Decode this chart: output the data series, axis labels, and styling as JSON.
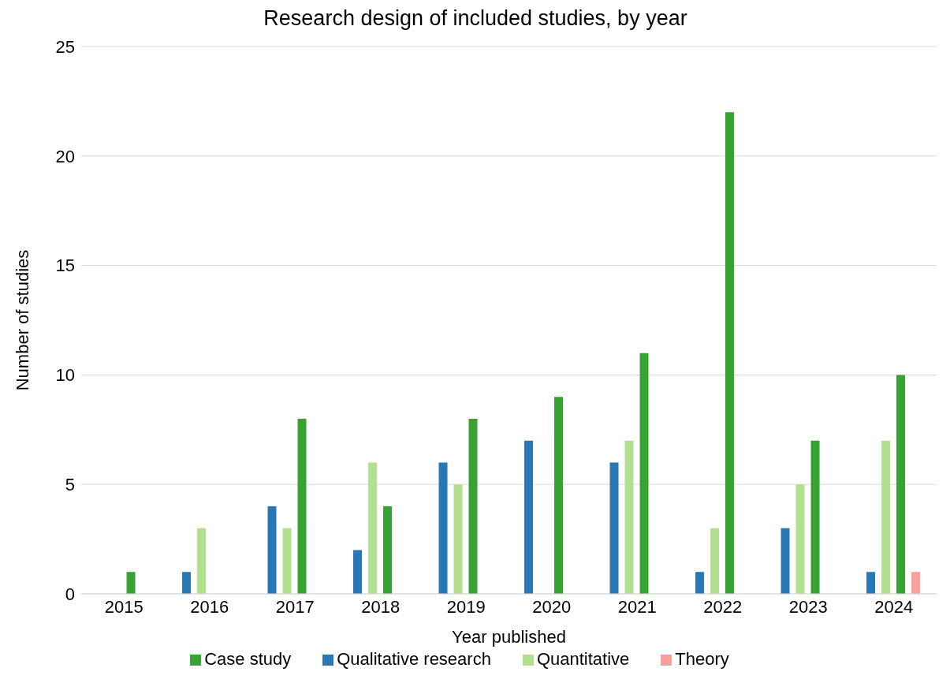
{
  "chart_data": {
    "type": "bar",
    "title": "Research design of included studies, by year",
    "xlabel": "Year published",
    "ylabel": "Number of studies",
    "categories": [
      "2015",
      "2016",
      "2017",
      "2018",
      "2019",
      "2020",
      "2021",
      "2022",
      "2023",
      "2024"
    ],
    "series": [
      {
        "name": "Qualitative research",
        "color": "#2878b8",
        "values": [
          0,
          1,
          4,
          2,
          6,
          7,
          6,
          1,
          3,
          1
        ]
      },
      {
        "name": "Quantitative",
        "color": "#b3e08f",
        "values": [
          0,
          3,
          3,
          6,
          5,
          0,
          7,
          3,
          5,
          7
        ]
      },
      {
        "name": "Case study",
        "color": "#36a332",
        "values": [
          1,
          0,
          8,
          4,
          8,
          9,
          11,
          22,
          7,
          10
        ]
      },
      {
        "name": "Theory",
        "color": "#f7a09c",
        "values": [
          0,
          0,
          0,
          0,
          0,
          0,
          0,
          0,
          0,
          1
        ]
      }
    ],
    "ylim": [
      0,
      25
    ],
    "yticks": [
      0,
      5,
      10,
      15,
      20,
      25
    ],
    "grid": "y",
    "legend": "bottom"
  }
}
